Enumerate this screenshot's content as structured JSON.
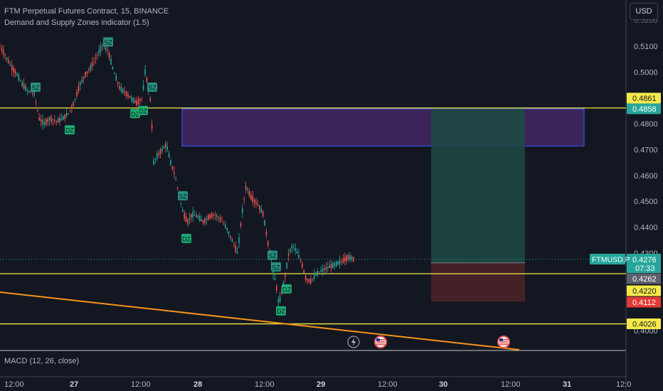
{
  "header": {
    "symbol_line": "FTM Perpetual Futures Contract, 15, BINANCE",
    "indicator_line": "Demand and Supply Zones indicator (1.5)"
  },
  "currency_button": "USD",
  "macd_label": "MACD (12, 26, close)",
  "colors": {
    "background": "#131722",
    "up_candle": "#26a69a",
    "down_candle": "#ef5350",
    "yellow_line": "#f5e94a",
    "trendline": "#f7931a",
    "supply_zone_fill": "#4a2a6e",
    "supply_zone_border": "#3d5afe",
    "target_fill": "#1e4a44",
    "stop_fill": "#4a2228",
    "zone_label_bg": "#2a9d8f",
    "dz_label_bg": "#1fb87a"
  },
  "chart_data": {
    "type": "candlestick",
    "symbol": "FTMUSD.P",
    "ylim": [
      0.395,
      0.513
    ],
    "y_ticks": [
      "0.5100",
      "0.5000",
      "0.4800",
      "0.4700",
      "0.4600",
      "0.4500",
      "0.4400",
      "0.4300",
      "0.4000"
    ],
    "x_ticks": [
      "12:00",
      "27",
      "12:00",
      "28",
      "12:00",
      "29",
      "12:00",
      "30",
      "12:00",
      "31",
      "12:0"
    ],
    "price_levels": [
      {
        "label": "0.4861",
        "value": 0.4861,
        "style": "yellow"
      },
      {
        "label": "0.4858",
        "value": 0.4858,
        "style": "teal"
      },
      {
        "label": "0.4276",
        "value": 0.4276,
        "style": "current",
        "symbol": "FTMUSD.P",
        "countdown": "07:33"
      },
      {
        "label": "0.4262",
        "value": 0.4262,
        "style": "gray"
      },
      {
        "label": "0.4220",
        "value": 0.422,
        "style": "yellow"
      },
      {
        "label": "0.4112",
        "value": 0.4112,
        "style": "red"
      },
      {
        "label": "0.4026",
        "value": 0.4026,
        "style": "yellow"
      }
    ],
    "horizontal_lines": [
      0.4861,
      0.422,
      0.4026
    ],
    "supply_zone": {
      "top": 0.4858,
      "bottom": 0.4714
    },
    "position": {
      "target": 0.4858,
      "entry": 0.4262,
      "stop": 0.4112
    },
    "zone_labels": [
      {
        "text": "SZ",
        "x": 50,
        "y": 0.494
      },
      {
        "text": "DZ",
        "x": 98,
        "y": 0.4775
      },
      {
        "text": "SZ",
        "x": 152,
        "y": 0.5115
      },
      {
        "text": "DZ",
        "x": 190,
        "y": 0.4838
      },
      {
        "text": "DZ",
        "x": 201,
        "y": 0.485
      },
      {
        "text": "SZ",
        "x": 214,
        "y": 0.494
      },
      {
        "text": "SZ",
        "x": 257,
        "y": 0.452
      },
      {
        "text": "DZ",
        "x": 262,
        "y": 0.4355
      },
      {
        "text": "SZ",
        "x": 383,
        "y": 0.429
      },
      {
        "text": "SZ",
        "x": 388,
        "y": 0.4245
      },
      {
        "text": "DZ",
        "x": 403,
        "y": 0.416
      },
      {
        "text": "DZ",
        "x": 395,
        "y": 0.4075
      }
    ],
    "price_path": [
      [
        0,
        0.51
      ],
      [
        8,
        0.506
      ],
      [
        16,
        0.502
      ],
      [
        24,
        0.499
      ],
      [
        32,
        0.495
      ],
      [
        40,
        0.4925
      ],
      [
        48,
        0.492
      ],
      [
        55,
        0.482
      ],
      [
        62,
        0.48
      ],
      [
        70,
        0.482
      ],
      [
        80,
        0.481
      ],
      [
        88,
        0.482
      ],
      [
        96,
        0.484
      ],
      [
        104,
        0.488
      ],
      [
        112,
        0.495
      ],
      [
        120,
        0.499
      ],
      [
        128,
        0.502
      ],
      [
        136,
        0.506
      ],
      [
        144,
        0.5105
      ],
      [
        152,
        0.508
      ],
      [
        160,
        0.5
      ],
      [
        168,
        0.494
      ],
      [
        176,
        0.492
      ],
      [
        184,
        0.49
      ],
      [
        192,
        0.488
      ],
      [
        200,
        0.49
      ],
      [
        204,
        0.5
      ],
      [
        208,
        0.495
      ],
      [
        212,
        0.488
      ],
      [
        216,
        0.465
      ],
      [
        222,
        0.468
      ],
      [
        228,
        0.47
      ],
      [
        234,
        0.472
      ],
      [
        240,
        0.465
      ],
      [
        246,
        0.46
      ],
      [
        252,
        0.452
      ],
      [
        258,
        0.445
      ],
      [
        264,
        0.442
      ],
      [
        270,
        0.445
      ],
      [
        278,
        0.444
      ],
      [
        286,
        0.442
      ],
      [
        294,
        0.444
      ],
      [
        302,
        0.445
      ],
      [
        310,
        0.443
      ],
      [
        318,
        0.44
      ],
      [
        326,
        0.435
      ],
      [
        334,
        0.43
      ],
      [
        340,
        0.445
      ],
      [
        346,
        0.456
      ],
      [
        352,
        0.452
      ],
      [
        358,
        0.45
      ],
      [
        364,
        0.448
      ],
      [
        370,
        0.445
      ],
      [
        376,
        0.435
      ],
      [
        382,
        0.425
      ],
      [
        388,
        0.418
      ],
      [
        392,
        0.41
      ],
      [
        396,
        0.415
      ],
      [
        400,
        0.42
      ],
      [
        406,
        0.43
      ],
      [
        412,
        0.433
      ],
      [
        418,
        0.43
      ],
      [
        424,
        0.426
      ],
      [
        430,
        0.42
      ],
      [
        436,
        0.419
      ],
      [
        442,
        0.421
      ],
      [
        450,
        0.423
      ],
      [
        458,
        0.424
      ],
      [
        466,
        0.425
      ],
      [
        474,
        0.426
      ],
      [
        482,
        0.427
      ],
      [
        490,
        0.4285
      ],
      [
        497,
        0.4276
      ]
    ],
    "event_icons": [
      {
        "type": "lightning",
        "x": 497
      },
      {
        "type": "us-flag",
        "x": 535
      },
      {
        "type": "us-flag",
        "x": 708
      }
    ]
  }
}
